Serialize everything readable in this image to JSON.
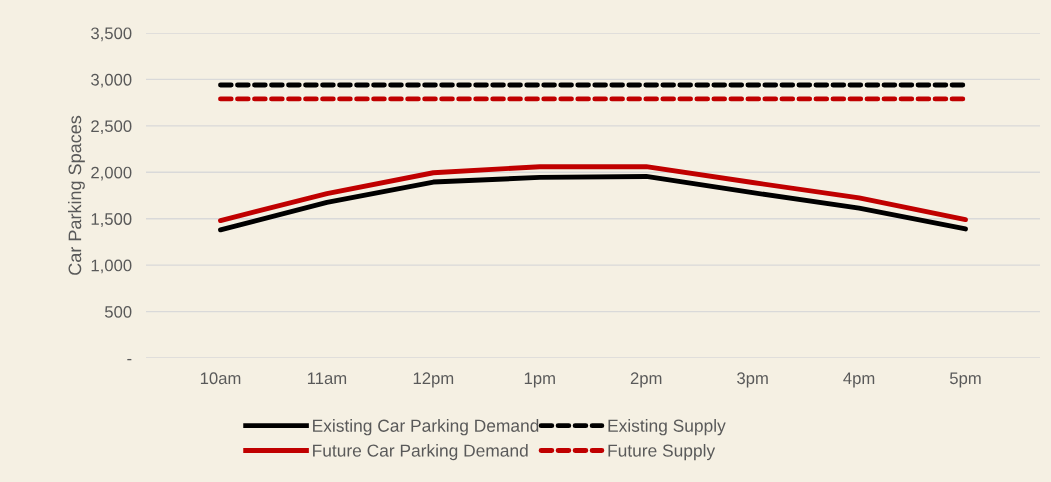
{
  "chart_data": {
    "type": "line",
    "ylabel": "Car Parking Spaces",
    "categories": [
      "10am",
      "11am",
      "12pm",
      "1pm",
      "2pm",
      "3pm",
      "4pm",
      "5pm"
    ],
    "series": [
      {
        "name": "Existing Car Parking Demand",
        "color": "#000000",
        "line_style": "solid",
        "values": [
          1380,
          1675,
          1895,
          1945,
          1955,
          1780,
          1615,
          1390
        ]
      },
      {
        "name": "Future Car Parking Demand",
        "color": "#c00000",
        "line_style": "solid",
        "values": [
          1480,
          1770,
          1995,
          2060,
          2060,
          1890,
          1725,
          1490
        ]
      },
      {
        "name": "Existing Supply",
        "color": "#000000",
        "line_style": "dashed",
        "values": [
          2940,
          2940,
          2940,
          2940,
          2940,
          2940,
          2940,
          2940
        ]
      },
      {
        "name": "Future Supply",
        "color": "#c00000",
        "line_style": "dashed",
        "values": [
          2790,
          2790,
          2790,
          2790,
          2790,
          2790,
          2790,
          2790
        ]
      }
    ],
    "ylim": [
      0,
      3500
    ],
    "yticks": [
      {
        "value": 0,
        "label": "-"
      },
      {
        "value": 500,
        "label": "500"
      },
      {
        "value": 1000,
        "label": "1,000"
      },
      {
        "value": 1500,
        "label": "1,500"
      },
      {
        "value": 2000,
        "label": "2,000"
      },
      {
        "value": 2500,
        "label": "2,500"
      },
      {
        "value": 3000,
        "label": "3,000"
      },
      {
        "value": 3500,
        "label": "3,500"
      }
    ],
    "grid": "y",
    "legend": "bottom",
    "marker": "none"
  }
}
